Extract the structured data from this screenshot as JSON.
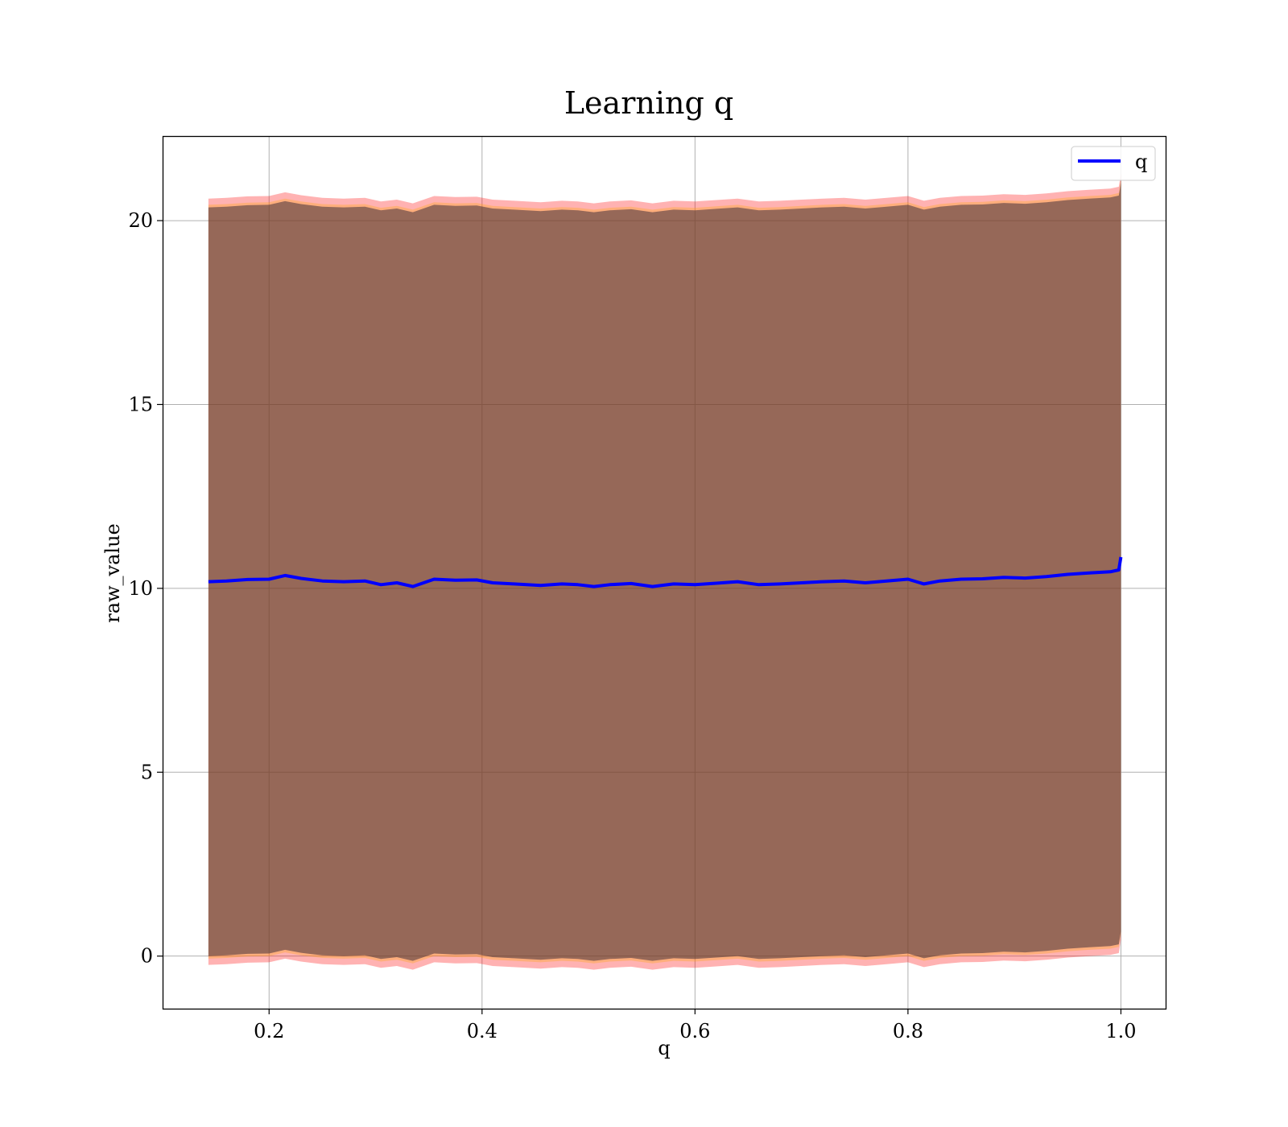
{
  "chart_data": {
    "type": "line",
    "title": "Learning q",
    "xlabel": "q",
    "ylabel": "raw_value",
    "xlim": [
      0.1,
      1.042
    ],
    "ylim": [
      -1.43,
      22.3
    ],
    "xticks": [
      0.2,
      0.4,
      0.6,
      0.8,
      1.0
    ],
    "xtick_labels": [
      "0.2",
      "0.4",
      "0.6",
      "0.8",
      "1.0"
    ],
    "yticks": [
      0,
      5,
      10,
      15,
      20
    ],
    "ytick_labels": [
      "0",
      "5",
      "10",
      "15",
      "20"
    ],
    "grid": true,
    "legend": {
      "placement": "upper right",
      "entries": [
        "q"
      ]
    },
    "x": [
      0.143,
      0.16,
      0.18,
      0.2,
      0.215,
      0.23,
      0.25,
      0.27,
      0.29,
      0.305,
      0.32,
      0.335,
      0.355,
      0.375,
      0.395,
      0.41,
      0.43,
      0.455,
      0.475,
      0.49,
      0.505,
      0.52,
      0.54,
      0.56,
      0.58,
      0.6,
      0.62,
      0.64,
      0.66,
      0.68,
      0.7,
      0.72,
      0.74,
      0.76,
      0.78,
      0.8,
      0.815,
      0.83,
      0.85,
      0.87,
      0.89,
      0.91,
      0.93,
      0.95,
      0.97,
      0.99,
      0.998,
      1.0
    ],
    "series": [
      {
        "name": "q",
        "color": "#0000ff",
        "values": [
          10.18,
          10.2,
          10.24,
          10.25,
          10.35,
          10.27,
          10.2,
          10.18,
          10.2,
          10.1,
          10.15,
          10.05,
          10.25,
          10.22,
          10.23,
          10.15,
          10.12,
          10.08,
          10.12,
          10.1,
          10.05,
          10.1,
          10.13,
          10.05,
          10.12,
          10.1,
          10.14,
          10.18,
          10.1,
          10.12,
          10.15,
          10.18,
          10.2,
          10.15,
          10.2,
          10.25,
          10.12,
          10.2,
          10.25,
          10.26,
          10.3,
          10.28,
          10.32,
          10.38,
          10.42,
          10.45,
          10.5,
          10.85
        ]
      }
    ],
    "bands": [
      {
        "color": "#ff0000",
        "lower_offset": -10.42,
        "upper_offset": 10.42,
        "opacity": 0.3
      },
      {
        "color": "#ffa500",
        "lower_offset": -10.25,
        "upper_offset": 10.25,
        "opacity": 0.3
      },
      {
        "color": "#40303a",
        "lower_offset": -10.18,
        "upper_offset": 10.18,
        "opacity": 0.55
      }
    ]
  }
}
